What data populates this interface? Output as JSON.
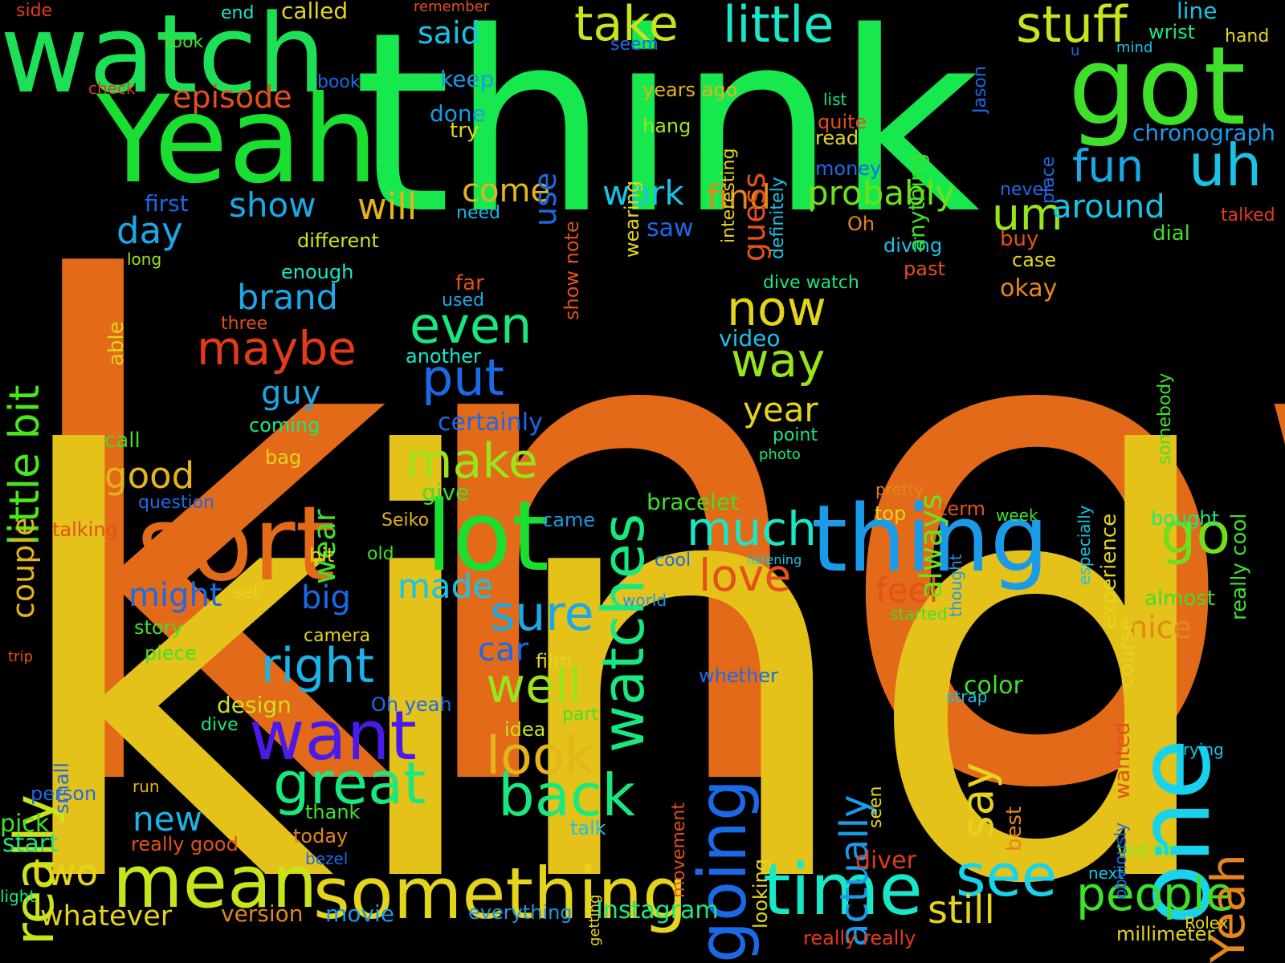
{
  "words": [
    {
      "text": "know",
      "color": "#e36a18"
    },
    {
      "text": "kind",
      "color": "#e4c21a"
    },
    {
      "text": "think",
      "color": "#17e84e"
    },
    {
      "text": "Yeah",
      "color": "#19e030"
    },
    {
      "text": "watch",
      "color": "#1ee057"
    },
    {
      "text": "got",
      "color": "#3fe02a"
    },
    {
      "text": "sort",
      "color": "#e36a18"
    },
    {
      "text": "lot",
      "color": "#19e030"
    },
    {
      "text": "one",
      "color": "#17d4ec"
    },
    {
      "text": "thing",
      "color": "#1a9ae8"
    },
    {
      "text": "mean",
      "color": "#c9e41a"
    },
    {
      "text": "something",
      "color": "#e4d41a"
    },
    {
      "text": "time",
      "color": "#17e8c8"
    },
    {
      "text": "going",
      "color": "#1a6ae8"
    },
    {
      "text": "watches",
      "color": "#17e880"
    },
    {
      "text": "really",
      "color": "#c9e41a"
    },
    {
      "text": "want",
      "color": "#4a1ae8"
    },
    {
      "text": "great",
      "color": "#17e880"
    },
    {
      "text": "back",
      "color": "#17e880"
    },
    {
      "text": "look",
      "color": "#e4b41a"
    },
    {
      "text": "see",
      "color": "#17d4ec"
    },
    {
      "text": "people",
      "color": "#3fe02a"
    },
    {
      "text": "little bit",
      "color": "#4ae81a"
    },
    {
      "text": "uh",
      "color": "#17c4e8"
    },
    {
      "text": "go",
      "color": "#6fe01a"
    },
    {
      "text": "Yeah",
      "color": "#e4861a"
    },
    {
      "text": "stuff",
      "color": "#c9e41a"
    },
    {
      "text": "little",
      "color": "#17e8c8"
    },
    {
      "text": "take",
      "color": "#c9e41a"
    },
    {
      "text": "maybe",
      "color": "#e43a1a"
    },
    {
      "text": "even",
      "color": "#17e880"
    },
    {
      "text": "make",
      "color": "#9ae41a"
    },
    {
      "text": "put",
      "color": "#1a6ae8"
    },
    {
      "text": "now",
      "color": "#e4d41a"
    },
    {
      "text": "way",
      "color": "#9ae41a"
    },
    {
      "text": "much",
      "color": "#17e8c8"
    },
    {
      "text": "love",
      "color": "#e4501a"
    },
    {
      "text": "sure",
      "color": "#1aa8e8"
    },
    {
      "text": "right",
      "color": "#1ab4e8"
    },
    {
      "text": "well",
      "color": "#9ae41a"
    },
    {
      "text": "actually",
      "color": "#1a9ae8"
    },
    {
      "text": "say",
      "color": "#e4d41a"
    },
    {
      "text": "still",
      "color": "#e4d41a"
    },
    {
      "text": "fun",
      "color": "#1aa8e8"
    },
    {
      "text": "um",
      "color": "#9ae41a"
    },
    {
      "text": "around",
      "color": "#17c4e8"
    },
    {
      "text": "probably",
      "color": "#6fe01a"
    },
    {
      "text": "work",
      "color": "#17c4e8"
    },
    {
      "text": "find",
      "color": "#e4861a"
    },
    {
      "text": "show",
      "color": "#1aa8e8"
    },
    {
      "text": "will",
      "color": "#e4b41a"
    },
    {
      "text": "come",
      "color": "#e4b41a"
    },
    {
      "text": "day",
      "color": "#1aa8e8"
    },
    {
      "text": "brand",
      "color": "#1aa8e8"
    },
    {
      "text": "guy",
      "color": "#1aa8e8"
    },
    {
      "text": "good",
      "color": "#e4b41a"
    },
    {
      "text": "might",
      "color": "#1a6ae8"
    },
    {
      "text": "big",
      "color": "#1a6ae8"
    },
    {
      "text": "made",
      "color": "#17c4e8"
    },
    {
      "text": "new",
      "color": "#1ab4e8"
    },
    {
      "text": "two",
      "color": "#e4d41a"
    },
    {
      "text": "whatever",
      "color": "#e4d41a"
    },
    {
      "text": "episode",
      "color": "#e4501a"
    },
    {
      "text": "said",
      "color": "#17c4e8"
    },
    {
      "text": "use",
      "color": "#1a6ae8"
    },
    {
      "text": "year",
      "color": "#e4d41a"
    },
    {
      "text": "feel",
      "color": "#e4501a"
    },
    {
      "text": "nice",
      "color": "#e4861a"
    },
    {
      "text": "car",
      "color": "#1a6ae8"
    },
    {
      "text": "always",
      "color": "#6fe01a"
    },
    {
      "text": "wear",
      "color": "#3fe02a"
    },
    {
      "text": "guess",
      "color": "#e4501a"
    },
    {
      "text": "couple",
      "color": "#e4b41a"
    },
    {
      "text": "first",
      "color": "#1a6ae8"
    },
    {
      "text": "keep",
      "color": "#1a9ae8"
    },
    {
      "text": "done",
      "color": "#1a9ae8"
    },
    {
      "text": "try",
      "color": "#e4d41a"
    },
    {
      "text": "called",
      "color": "#e4d41a"
    },
    {
      "text": "took",
      "color": "#3fe02a"
    },
    {
      "text": "end",
      "color": "#17e8c8"
    },
    {
      "text": "side",
      "color": "#e43a1a"
    },
    {
      "text": "remember",
      "color": "#e4501a"
    },
    {
      "text": "seem",
      "color": "#1a6ae8"
    },
    {
      "text": "book",
      "color": "#1a6ae8"
    },
    {
      "text": "check",
      "color": "#e43a1a"
    },
    {
      "text": "years ago",
      "color": "#e4b41a"
    },
    {
      "text": "hang",
      "color": "#9ae41a"
    },
    {
      "text": "line",
      "color": "#17c4e8"
    },
    {
      "text": "wrist",
      "color": "#17e880"
    },
    {
      "text": "hand",
      "color": "#e4d41a"
    },
    {
      "text": "u",
      "color": "#1a6ae8"
    },
    {
      "text": "mind",
      "color": "#17c4e8"
    },
    {
      "text": "chronograph",
      "color": "#1a9ae8"
    },
    {
      "text": "quite",
      "color": "#e4501a"
    },
    {
      "text": "read",
      "color": "#e4d41a"
    },
    {
      "text": "money",
      "color": "#1a6ae8"
    },
    {
      "text": "list",
      "color": "#17e880"
    },
    {
      "text": "never",
      "color": "#1a6ae8"
    },
    {
      "text": "talked",
      "color": "#e43a1a"
    },
    {
      "text": "dial",
      "color": "#3fe02a"
    },
    {
      "text": "buy",
      "color": "#e4501a"
    },
    {
      "text": "case",
      "color": "#e4d41a"
    },
    {
      "text": "okay",
      "color": "#e4861a"
    },
    {
      "text": "Oh",
      "color": "#e4861a"
    },
    {
      "text": "diving",
      "color": "#17c4e8"
    },
    {
      "text": "past",
      "color": "#e4501a"
    },
    {
      "text": "saw",
      "color": "#1a6ae8"
    },
    {
      "text": "need",
      "color": "#1ab4e8"
    },
    {
      "text": "different",
      "color": "#c9e41a"
    },
    {
      "text": "long",
      "color": "#9ae41a"
    },
    {
      "text": "enough",
      "color": "#17e8c8"
    },
    {
      "text": "three",
      "color": "#e4501a"
    },
    {
      "text": "far",
      "color": "#e4501a"
    },
    {
      "text": "used",
      "color": "#1aa8e8"
    },
    {
      "text": "another",
      "color": "#17e8c8"
    },
    {
      "text": "dive watch",
      "color": "#17e880"
    },
    {
      "text": "video",
      "color": "#17c4e8"
    },
    {
      "text": "certainly",
      "color": "#1a6ae8"
    },
    {
      "text": "point",
      "color": "#17e880"
    },
    {
      "text": "photo",
      "color": "#17e880"
    },
    {
      "text": "coming",
      "color": "#17e880"
    },
    {
      "text": "bag",
      "color": "#e4d41a"
    },
    {
      "text": "call",
      "color": "#3fe02a"
    },
    {
      "text": "give",
      "color": "#3fe02a"
    },
    {
      "text": "question",
      "color": "#1a6ae8"
    },
    {
      "text": "talking",
      "color": "#e4501a"
    },
    {
      "text": "bit",
      "color": "#e4d41a"
    },
    {
      "text": "old",
      "color": "#3fe02a"
    },
    {
      "text": "Seiko",
      "color": "#e4b41a"
    },
    {
      "text": "came",
      "color": "#1a9ae8"
    },
    {
      "text": "bracelet",
      "color": "#3fe02a"
    },
    {
      "text": "cool",
      "color": "#1a6ae8"
    },
    {
      "text": "set",
      "color": "#e4d41a"
    },
    {
      "text": "story",
      "color": "#3fe02a"
    },
    {
      "text": "camera",
      "color": "#e4d41a"
    },
    {
      "text": "piece",
      "color": "#3fe02a"
    },
    {
      "text": "trip",
      "color": "#e4501a"
    },
    {
      "text": "film",
      "color": "#e4d41a"
    },
    {
      "text": "world",
      "color": "#1a9ae8"
    },
    {
      "text": "listening",
      "color": "#17c4e8"
    },
    {
      "text": "whether",
      "color": "#1a6ae8"
    },
    {
      "text": "design",
      "color": "#c9e41a"
    },
    {
      "text": "Oh yeah",
      "color": "#1a6ae8"
    },
    {
      "text": "dive",
      "color": "#17e880"
    },
    {
      "text": "idea",
      "color": "#c9e41a"
    },
    {
      "text": "part",
      "color": "#3fe02a"
    },
    {
      "text": "run",
      "color": "#e4b41a"
    },
    {
      "text": "person",
      "color": "#1a6ae8"
    },
    {
      "text": "pick",
      "color": "#3fe02a"
    },
    {
      "text": "start",
      "color": "#17e880"
    },
    {
      "text": "thank",
      "color": "#3fe02a"
    },
    {
      "text": "really good",
      "color": "#e4501a"
    },
    {
      "text": "today",
      "color": "#e4861a"
    },
    {
      "text": "bezel",
      "color": "#1a6ae8"
    },
    {
      "text": "light",
      "color": "#17e880"
    },
    {
      "text": "version",
      "color": "#e4861a"
    },
    {
      "text": "movie",
      "color": "#1a9ae8"
    },
    {
      "text": "everything",
      "color": "#1a9ae8"
    },
    {
      "text": "Instagram",
      "color": "#17e880"
    },
    {
      "text": "talk",
      "color": "#17c4e8"
    },
    {
      "text": "top",
      "color": "#e4d41a"
    },
    {
      "text": "term",
      "color": "#e4501a"
    },
    {
      "text": "week",
      "color": "#3fe02a"
    },
    {
      "text": "bought",
      "color": "#17e880"
    },
    {
      "text": "color",
      "color": "#3fe02a"
    },
    {
      "text": "strap",
      "color": "#17c4e8"
    },
    {
      "text": "started",
      "color": "#3fe02a"
    },
    {
      "text": "diver",
      "color": "#e43a1a"
    },
    {
      "text": "went",
      "color": "#9ae41a"
    },
    {
      "text": "almost",
      "color": "#3fe02a"
    },
    {
      "text": "trying",
      "color": "#17c4e8"
    },
    {
      "text": "next",
      "color": "#17c4e8"
    },
    {
      "text": "really really",
      "color": "#e43a1a"
    },
    {
      "text": "millimeter",
      "color": "#e4d41a"
    },
    {
      "text": "Rolex",
      "color": "#e4d41a"
    },
    {
      "text": "pretty",
      "color": "#e4861a"
    },
    {
      "text": "small",
      "color": "#1a6ae8"
    },
    {
      "text": "anything",
      "color": "#3fe02a"
    },
    {
      "text": "definitely",
      "color": "#17c4e8"
    },
    {
      "text": "interesting",
      "color": "#e4d41a"
    },
    {
      "text": "show note",
      "color": "#e4501a"
    },
    {
      "text": "wearing",
      "color": "#e4d41a"
    },
    {
      "text": "able",
      "color": "#e4d41a"
    },
    {
      "text": "Jason",
      "color": "#1a6ae8"
    },
    {
      "text": "place",
      "color": "#1a6ae8"
    },
    {
      "text": "somebody",
      "color": "#3fe02a"
    },
    {
      "text": "really cool",
      "color": "#3fe02a"
    },
    {
      "text": "especially",
      "color": "#17c4e8"
    },
    {
      "text": "experience",
      "color": "#e4d41a"
    },
    {
      "text": "course",
      "color": "#e4d41a"
    },
    {
      "text": "wanted",
      "color": "#e4501a"
    },
    {
      "text": "thought",
      "color": "#1a9ae8"
    },
    {
      "text": "obviously",
      "color": "#1a6ae8"
    },
    {
      "text": "best",
      "color": "#e4861a"
    },
    {
      "text": "seen",
      "color": "#e4d41a"
    },
    {
      "text": "looking",
      "color": "#e4d41a"
    },
    {
      "text": "movement",
      "color": "#e4501a"
    },
    {
      "text": "getting",
      "color": "#e4d41a"
    },
    {
      "text": "basically",
      "color": "#1a9ae8"
    },
    {
      "text": "better",
      "color": "#1a6ae8"
    }
  ]
}
